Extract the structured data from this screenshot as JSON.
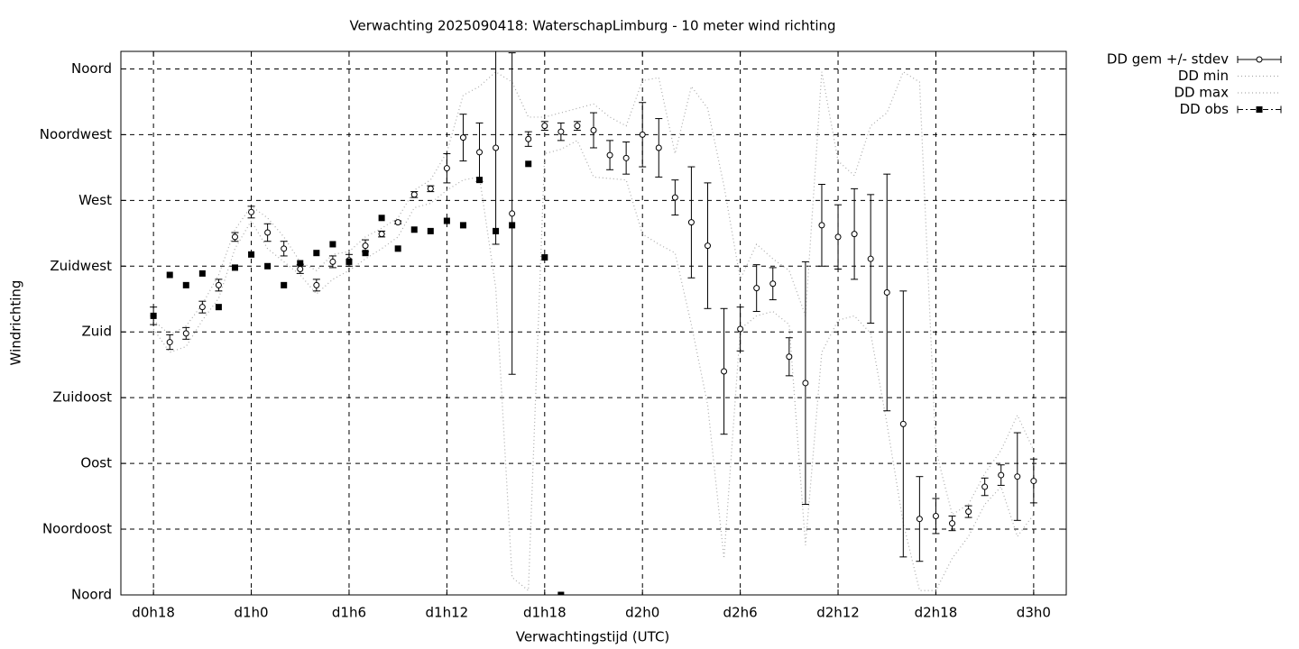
{
  "chart_data": {
    "type": "errorline",
    "title": "Verwachting 2025090418: WaterschapLimburg - 10 meter wind richting",
    "x_label": "Verwachtingstijd (UTC)",
    "y_label": "Windrichting",
    "grid": true,
    "xlim": [
      16,
      74
    ],
    "ylim": [
      0,
      372
    ],
    "xticks": [
      {
        "value": 18,
        "label": "d0h18"
      },
      {
        "value": 24,
        "label": "d1h0"
      },
      {
        "value": 30,
        "label": "d1h6"
      },
      {
        "value": 36,
        "label": "d1h12"
      },
      {
        "value": 42,
        "label": "d1h18"
      },
      {
        "value": 48,
        "label": "d2h0"
      },
      {
        "value": 54,
        "label": "d2h6"
      },
      {
        "value": 60,
        "label": "d2h12"
      },
      {
        "value": 66,
        "label": "d2h18"
      },
      {
        "value": 72,
        "label": "d3h0"
      }
    ],
    "yticks": [
      {
        "value": 0,
        "label": "Noord"
      },
      {
        "value": 45,
        "label": "Noordoost"
      },
      {
        "value": 90,
        "label": "Oost"
      },
      {
        "value": 135,
        "label": "Zuidoost"
      },
      {
        "value": 180,
        "label": "Zuid"
      },
      {
        "value": 225,
        "label": "Zuidwest"
      },
      {
        "value": 270,
        "label": "West"
      },
      {
        "value": 315,
        "label": "Noordwest"
      },
      {
        "value": 360,
        "label": "Noord"
      }
    ],
    "x": [
      18,
      19,
      20,
      21,
      22,
      23,
      24,
      25,
      26,
      27,
      28,
      29,
      30,
      31,
      32,
      33,
      34,
      35,
      36,
      37,
      38,
      39,
      40,
      41,
      42,
      43,
      44,
      45,
      46,
      47,
      48,
      49,
      50,
      51,
      52,
      53,
      54,
      55,
      56,
      57,
      58,
      59,
      60,
      61,
      62,
      63,
      64,
      65,
      66,
      67,
      68,
      69,
      70,
      71,
      72
    ],
    "series": [
      {
        "name": "DD gem +/- stdev",
        "color": "#000000",
        "style": "errorbar",
        "values": [
          191,
          173,
          179,
          197,
          212,
          245,
          262,
          248,
          237,
          223,
          212,
          228,
          229,
          239,
          247,
          255,
          274,
          278,
          292,
          313,
          303,
          306,
          261,
          312,
          321,
          317,
          321,
          318,
          301,
          299,
          315,
          306,
          272,
          255,
          239,
          153,
          182,
          210,
          213,
          163,
          145,
          253,
          245,
          247,
          230,
          207,
          117,
          52,
          54,
          49,
          57,
          74,
          82,
          81,
          78
        ],
        "errors": [
          6,
          5,
          4,
          4,
          4,
          3,
          4,
          6,
          5,
          3,
          4,
          4,
          4,
          4,
          2,
          1,
          2,
          2,
          10,
          16,
          20,
          66,
          110,
          5,
          3,
          6,
          3,
          12,
          10,
          11,
          22,
          20,
          12,
          38,
          43,
          43,
          15,
          16,
          11,
          13,
          83,
          28,
          22,
          31,
          44,
          81,
          91,
          29,
          12,
          5,
          4,
          6,
          7,
          30,
          15
        ]
      },
      {
        "name": "DD min",
        "color": "#aaaaaa",
        "style": "dotted",
        "values": [
          182,
          166,
          170,
          188,
          203,
          237,
          256,
          237,
          228,
          219,
          206,
          216,
          222,
          230,
          237,
          245,
          265,
          268,
          277,
          284,
          286,
          210,
          12,
          3,
          302,
          305,
          311,
          286,
          285,
          284,
          247,
          240,
          234,
          185,
          130,
          25,
          182,
          191,
          194,
          185,
          34,
          166,
          188,
          191,
          179,
          117,
          49,
          3,
          3,
          25,
          40,
          62,
          74,
          40,
          55
        ]
      },
      {
        "name": "DD max",
        "color": "#aaaaaa",
        "style": "dotted",
        "values": [
          188,
          178,
          184,
          199,
          219,
          250,
          266,
          258,
          245,
          228,
          222,
          233,
          235,
          245,
          251,
          258,
          277,
          284,
          303,
          342,
          348,
          358,
          351,
          327,
          327,
          330,
          333,
          336,
          327,
          321,
          352,
          354,
          302,
          348,
          333,
          280,
          216,
          240,
          230,
          222,
          191,
          358,
          297,
          287,
          321,
          330,
          358,
          351,
          99,
          55,
          62,
          83,
          99,
          123,
          99
        ]
      },
      {
        "name": "DD obs",
        "color": "#000000",
        "style": "square",
        "values": [
          191,
          219,
          212,
          220,
          197,
          224,
          233,
          225,
          212,
          227,
          234,
          240,
          228,
          234,
          258,
          237,
          250,
          249,
          256,
          253,
          284,
          249,
          253,
          295,
          231,
          0,
          null,
          null,
          null,
          null,
          null,
          null,
          null,
          null,
          null,
          null,
          null,
          null,
          null,
          null,
          null,
          null,
          null,
          null,
          null,
          null,
          null,
          null,
          null,
          null,
          null,
          null,
          null,
          null,
          null
        ]
      }
    ]
  }
}
